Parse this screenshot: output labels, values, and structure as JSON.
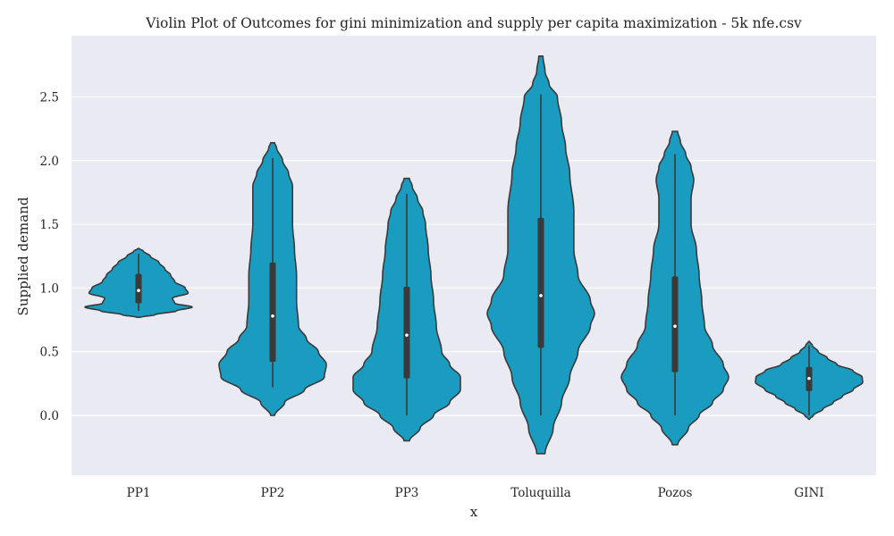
{
  "chart_data": {
    "type": "violin",
    "title": "Violin Plot of Outcomes for gini minimization and supply per capita maximization - 5k nfe.csv",
    "xlabel": "x",
    "ylabel": "Supplied demand",
    "ylim": [
      -0.47,
      2.98
    ],
    "yticks": [
      0.0,
      0.5,
      1.0,
      1.5,
      2.0,
      2.5
    ],
    "ytick_labels": [
      "0.0",
      "0.5",
      "1.0",
      "1.5",
      "2.0",
      "2.5"
    ],
    "grid": true,
    "legend": "none",
    "colors": {
      "violin": "#1a9bc0",
      "outline": "#3a3a3a",
      "background": "#eaeaf2",
      "grid": "#ffffff",
      "median": "#ffffff"
    },
    "categories": [
      "PP1",
      "PP2",
      "PP3",
      "Toluquilla",
      "Pozos",
      "GINI"
    ],
    "violins": [
      {
        "category": "PP1",
        "ymin": 0.77,
        "ymax": 1.31,
        "q1": 0.88,
        "median": 0.98,
        "q3": 1.11,
        "whisker_low": 0.82,
        "whisker_high": 1.27,
        "profile": [
          [
            0.77,
            0.03
          ],
          [
            0.79,
            0.28
          ],
          [
            0.82,
            0.65
          ],
          [
            0.85,
            0.92
          ],
          [
            0.88,
            0.62
          ],
          [
            0.92,
            0.58
          ],
          [
            0.96,
            0.85
          ],
          [
            1.0,
            0.8
          ],
          [
            1.05,
            0.62
          ],
          [
            1.1,
            0.55
          ],
          [
            1.15,
            0.45
          ],
          [
            1.2,
            0.35
          ],
          [
            1.25,
            0.2
          ],
          [
            1.29,
            0.08
          ],
          [
            1.31,
            0.01
          ]
        ]
      },
      {
        "category": "PP2",
        "ymin": 0.0,
        "ymax": 2.14,
        "q1": 0.42,
        "median": 0.78,
        "q3": 1.2,
        "whisker_low": 0.22,
        "whisker_high": 2.02,
        "profile": [
          [
            0.0,
            0.01
          ],
          [
            0.1,
            0.06
          ],
          [
            0.2,
            0.16
          ],
          [
            0.3,
            0.26
          ],
          [
            0.4,
            0.27
          ],
          [
            0.5,
            0.23
          ],
          [
            0.6,
            0.17
          ],
          [
            0.7,
            0.13
          ],
          [
            0.9,
            0.12
          ],
          [
            1.1,
            0.12
          ],
          [
            1.3,
            0.11
          ],
          [
            1.5,
            0.1
          ],
          [
            1.7,
            0.1
          ],
          [
            1.8,
            0.1
          ],
          [
            1.9,
            0.08
          ],
          [
            2.0,
            0.05
          ],
          [
            2.1,
            0.02
          ],
          [
            2.14,
            0.01
          ]
        ]
      },
      {
        "category": "PP3",
        "ymin": -0.2,
        "ymax": 1.86,
        "q1": 0.29,
        "median": 0.63,
        "q3": 1.01,
        "whisker_low": 0.0,
        "whisker_high": 1.74,
        "profile": [
          [
            -0.2,
            0.01
          ],
          [
            -0.1,
            0.05
          ],
          [
            0.0,
            0.1
          ],
          [
            0.1,
            0.16
          ],
          [
            0.2,
            0.2
          ],
          [
            0.3,
            0.2
          ],
          [
            0.4,
            0.16
          ],
          [
            0.5,
            0.13
          ],
          [
            0.7,
            0.11
          ],
          [
            0.9,
            0.1
          ],
          [
            1.1,
            0.09
          ],
          [
            1.3,
            0.08
          ],
          [
            1.5,
            0.07
          ],
          [
            1.6,
            0.06
          ],
          [
            1.7,
            0.04
          ],
          [
            1.8,
            0.02
          ],
          [
            1.86,
            0.01
          ]
        ]
      },
      {
        "category": "Toluquilla",
        "ymin": -0.3,
        "ymax": 2.82,
        "q1": 0.53,
        "median": 0.94,
        "q3": 1.55,
        "whisker_low": 0.0,
        "whisker_high": 2.52,
        "profile": [
          [
            -0.3,
            0.01
          ],
          [
            -0.1,
            0.03
          ],
          [
            0.1,
            0.05
          ],
          [
            0.3,
            0.07
          ],
          [
            0.5,
            0.09
          ],
          [
            0.7,
            0.12
          ],
          [
            0.8,
            0.13
          ],
          [
            0.9,
            0.12
          ],
          [
            1.1,
            0.09
          ],
          [
            1.3,
            0.08
          ],
          [
            1.6,
            0.08
          ],
          [
            1.9,
            0.07
          ],
          [
            2.1,
            0.06
          ],
          [
            2.3,
            0.05
          ],
          [
            2.5,
            0.04
          ],
          [
            2.6,
            0.02
          ],
          [
            2.7,
            0.01
          ],
          [
            2.82,
            0.005
          ]
        ]
      },
      {
        "category": "Pozos",
        "ymin": -0.23,
        "ymax": 2.23,
        "q1": 0.34,
        "median": 0.7,
        "q3": 1.09,
        "whisker_low": 0.0,
        "whisker_high": 2.05,
        "profile": [
          [
            -0.23,
            0.01
          ],
          [
            -0.1,
            0.05
          ],
          [
            0.0,
            0.09
          ],
          [
            0.1,
            0.14
          ],
          [
            0.2,
            0.18
          ],
          [
            0.3,
            0.2
          ],
          [
            0.4,
            0.18
          ],
          [
            0.55,
            0.14
          ],
          [
            0.7,
            0.11
          ],
          [
            0.9,
            0.1
          ],
          [
            1.1,
            0.09
          ],
          [
            1.3,
            0.08
          ],
          [
            1.5,
            0.06
          ],
          [
            1.7,
            0.06
          ],
          [
            1.85,
            0.07
          ],
          [
            1.95,
            0.06
          ],
          [
            2.05,
            0.04
          ],
          [
            2.15,
            0.02
          ],
          [
            2.23,
            0.01
          ]
        ]
      },
      {
        "category": "GINI",
        "ymin": -0.03,
        "ymax": 0.58,
        "q1": 0.19,
        "median": 0.29,
        "q3": 0.38,
        "whisker_low": 0.0,
        "whisker_high": 0.55,
        "profile": [
          [
            -0.03,
            0.01
          ],
          [
            0.0,
            0.08
          ],
          [
            0.05,
            0.26
          ],
          [
            0.1,
            0.45
          ],
          [
            0.15,
            0.62
          ],
          [
            0.2,
            0.82
          ],
          [
            0.26,
            1.0
          ],
          [
            0.3,
            0.99
          ],
          [
            0.35,
            0.82
          ],
          [
            0.4,
            0.52
          ],
          [
            0.45,
            0.34
          ],
          [
            0.5,
            0.17
          ],
          [
            0.55,
            0.06
          ],
          [
            0.58,
            0.01
          ]
        ]
      }
    ]
  }
}
